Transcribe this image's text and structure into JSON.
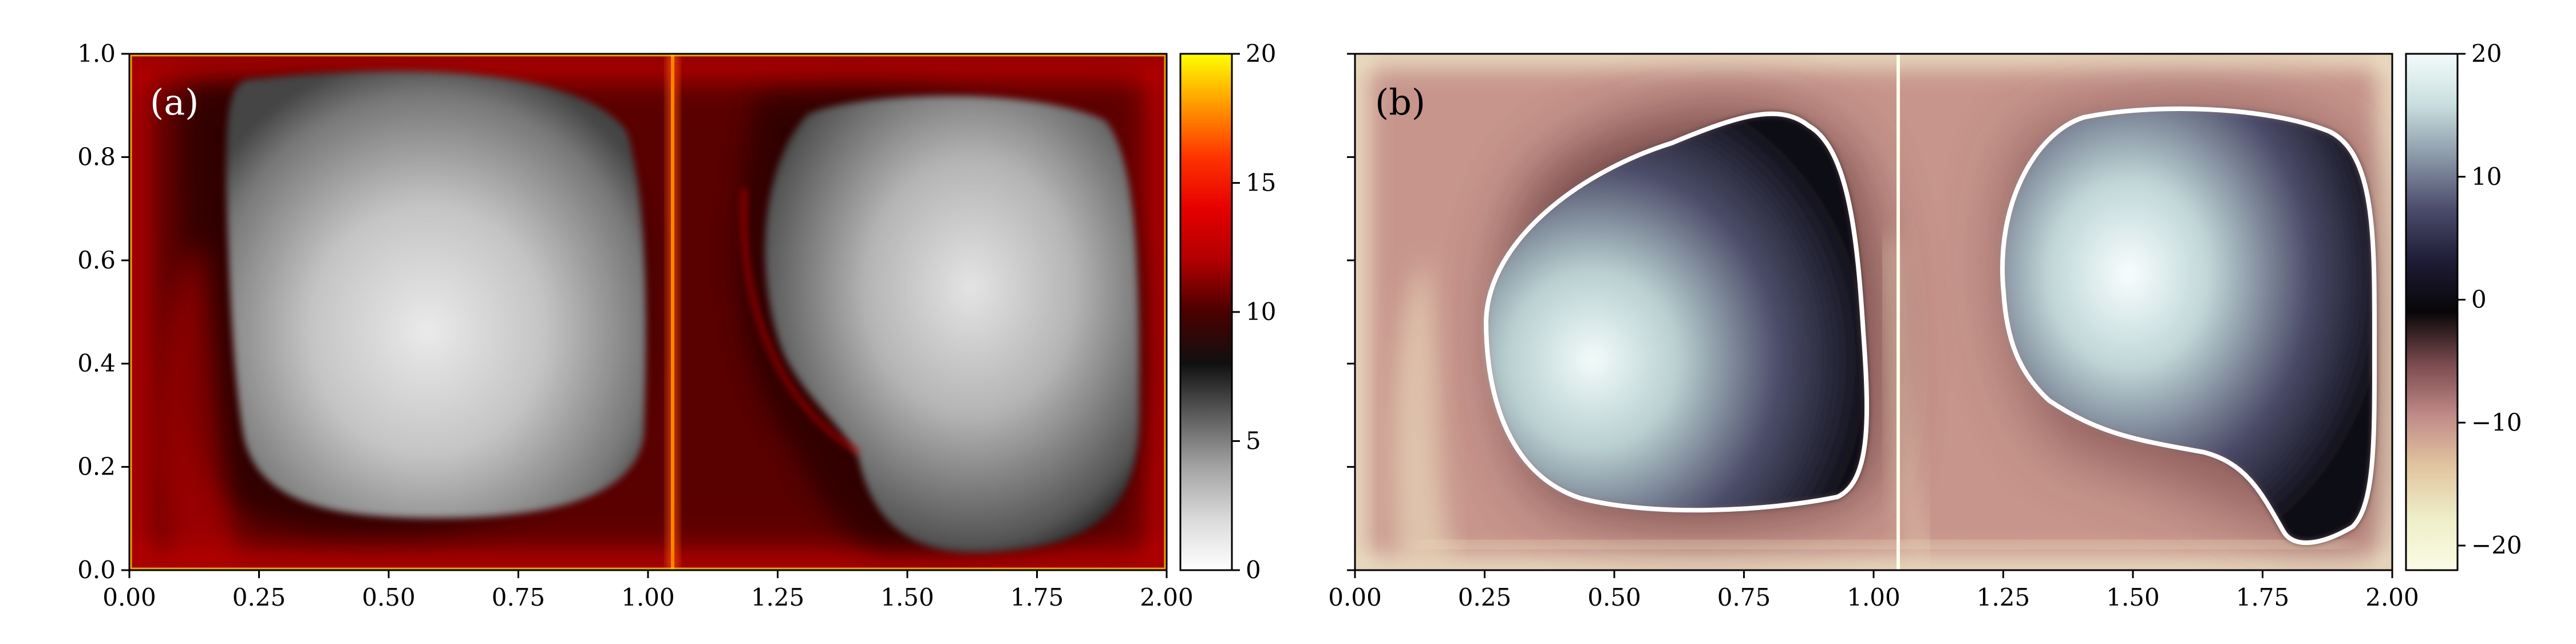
{
  "chart_data": [
    {
      "type": "heatmap",
      "panel_label": "(a)",
      "xlim": [
        0,
        2
      ],
      "ylim": [
        0,
        1
      ],
      "x_ticks": [
        "0.00",
        "0.25",
        "0.50",
        "0.75",
        "1.00",
        "1.25",
        "1.50",
        "1.75",
        "2.00"
      ],
      "x_tick_values": [
        0,
        0.25,
        0.5,
        0.75,
        1.0,
        1.25,
        1.5,
        1.75,
        2.0
      ],
      "y_ticks": [
        "0.0",
        "0.2",
        "0.4",
        "0.6",
        "0.8",
        "1.0"
      ],
      "y_tick_values": [
        0,
        0.2,
        0.4,
        0.6,
        0.8,
        1.0
      ],
      "colorbar": {
        "range": [
          0,
          20
        ],
        "ticks": [
          "0",
          "5",
          "10",
          "15",
          "20"
        ],
        "tick_values": [
          0,
          5,
          10,
          15,
          20
        ],
        "colormap": [
          "#ffffff",
          "#d9d9d9",
          "#a3a3a3",
          "#5c5c5c",
          "#101010",
          "#4a0000",
          "#b00000",
          "#e60000",
          "#ff3300",
          "#ff9900",
          "#ffff00"
        ]
      },
      "structure": [
        {
          "feature": "vortex",
          "center": [
            0.57,
            0.48
          ],
          "level": 3
        },
        {
          "feature": "vortex",
          "center": [
            1.55,
            0.62
          ],
          "level": 3.5
        },
        {
          "feature": "boundary-layer",
          "level": 14
        },
        {
          "feature": "separatrix",
          "x": 1.05,
          "level": 18
        }
      ]
    },
    {
      "type": "heatmap",
      "panel_label": "(b)",
      "xlim": [
        0,
        2
      ],
      "ylim": [
        0,
        1
      ],
      "x_ticks": [
        "0.00",
        "0.25",
        "0.50",
        "0.75",
        "1.00",
        "1.25",
        "1.50",
        "1.75",
        "2.00"
      ],
      "x_tick_values": [
        0,
        0.25,
        0.5,
        0.75,
        1.0,
        1.25,
        1.5,
        1.75,
        2.0
      ],
      "y_ticks": [],
      "y_tick_values": [
        0,
        0.2,
        0.4,
        0.6,
        0.8,
        1.0
      ],
      "colorbar": {
        "range": [
          -22,
          20
        ],
        "ticks": [
          "20",
          "10",
          "0",
          "−10",
          "−20"
        ],
        "tick_values": [
          20,
          10,
          0,
          -10,
          -20
        ],
        "colormap": [
          "#fbfbe6",
          "#eeeec8",
          "#e2c6a0",
          "#c08a88",
          "#7a4a4e",
          "#080608",
          "#1e1c36",
          "#4c4c6c",
          "#8a98a8",
          "#c8dede",
          "#f3fbfb"
        ]
      },
      "contour_level": 0,
      "structure": [
        {
          "feature": "vortex",
          "center": [
            0.52,
            0.44
          ],
          "level": 17
        },
        {
          "feature": "vortex",
          "center": [
            1.5,
            0.6
          ],
          "level": 18
        },
        {
          "feature": "boundary-layer",
          "level": -8
        },
        {
          "feature": "separatrix",
          "x": 1.05,
          "level": -20
        }
      ]
    }
  ]
}
